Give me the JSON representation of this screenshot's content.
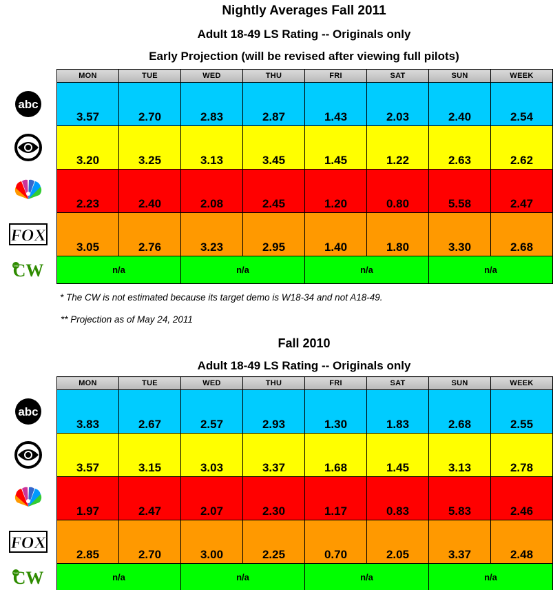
{
  "header": {
    "title": "Nightly Averages Fall 2011",
    "subtitle": "Adult 18-49 LS Rating -- Originals only",
    "subtitle2": "Early Projection (will be revised after viewing full pilots)"
  },
  "notes": {
    "note1": "* The CW is not estimated because its target demo is W18-34 and not A18-49.",
    "note2": "** Projection as of May 24, 2011"
  },
  "section2": {
    "title": "Fall 2010",
    "subtitle": "Adult 18-49 LS Rating -- Originals only"
  },
  "columns": [
    "MON",
    "TUE",
    "WED",
    "THU",
    "FRI",
    "SAT",
    "SUN",
    "WEEK"
  ],
  "na_label": "n/a",
  "colors": {
    "abc": "#00ccff",
    "cbs": "#ffff00",
    "nbc": "#ff0000",
    "fox": "#ff9900",
    "cw": "#00ff00"
  },
  "networks": [
    "abc-logo-icon",
    "cbs-eye-logo-icon",
    "nbc-peacock-logo-icon",
    "fox-logo-icon",
    "cw-logo-icon"
  ],
  "chart_data": [
    {
      "type": "table",
      "title": "Nightly Averages Fall 2011",
      "columns": [
        "MON",
        "TUE",
        "WED",
        "THU",
        "FRI",
        "SAT",
        "SUN",
        "WEEK"
      ],
      "rows": [
        {
          "network": "abc",
          "values": [
            "3.57",
            "2.70",
            "2.83",
            "2.87",
            "1.43",
            "2.03",
            "2.40",
            "2.54"
          ]
        },
        {
          "network": "cbs",
          "values": [
            "3.20",
            "3.25",
            "3.13",
            "3.45",
            "1.45",
            "1.22",
            "2.63",
            "2.62"
          ]
        },
        {
          "network": "nbc",
          "values": [
            "2.23",
            "2.40",
            "2.08",
            "2.45",
            "1.20",
            "0.80",
            "5.58",
            "2.47"
          ]
        },
        {
          "network": "fox",
          "values": [
            "3.05",
            "2.76",
            "3.23",
            "2.95",
            "1.40",
            "1.80",
            "3.30",
            "2.68"
          ]
        },
        {
          "network": "cw",
          "values": [
            "n/a",
            "n/a",
            "n/a",
            "n/a"
          ]
        }
      ]
    },
    {
      "type": "table",
      "title": "Fall 2010",
      "columns": [
        "MON",
        "TUE",
        "WED",
        "THU",
        "FRI",
        "SAT",
        "SUN",
        "WEEK"
      ],
      "rows": [
        {
          "network": "abc",
          "values": [
            "3.83",
            "2.67",
            "2.57",
            "2.93",
            "1.30",
            "1.83",
            "2.68",
            "2.55"
          ]
        },
        {
          "network": "cbs",
          "values": [
            "3.57",
            "3.15",
            "3.03",
            "3.37",
            "1.68",
            "1.45",
            "3.13",
            "2.78"
          ]
        },
        {
          "network": "nbc",
          "values": [
            "1.97",
            "2.47",
            "2.07",
            "2.30",
            "1.17",
            "0.83",
            "5.83",
            "2.46"
          ]
        },
        {
          "network": "fox",
          "values": [
            "2.85",
            "2.70",
            "3.00",
            "2.25",
            "0.70",
            "2.05",
            "3.37",
            "2.48"
          ]
        },
        {
          "network": "cw",
          "values": [
            "n/a",
            "n/a",
            "n/a",
            "n/a"
          ]
        }
      ]
    }
  ]
}
